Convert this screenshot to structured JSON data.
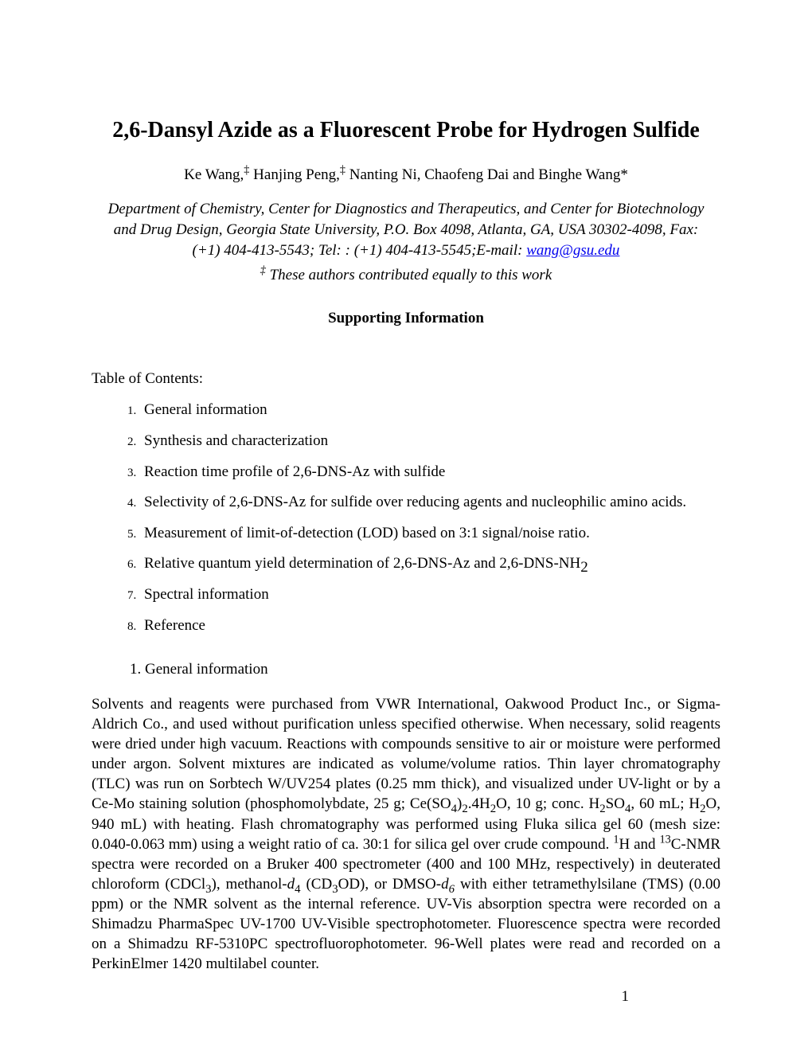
{
  "title": "2,6-Dansyl Azide as a Fluorescent Probe for Hydrogen Sulfide",
  "authors_html": "Ke Wang,<span class=\"sup\">‡</span> Hanjing Peng,<span class=\"sup\">‡</span> Nanting Ni, Chaofeng Dai and Binghe Wang*",
  "affiliation_html": "Department of Chemistry, Center for Diagnostics and Therapeutics, and Center for Biotechnology and Drug Design, Georgia State University, P.O. Box 4098, Atlanta, GA, USA 30302-4098, Fax: (+1) 404-413-5543; Tel: : (+1) 404-413-5545;E-mail: <a class=\"email-link\" href=\"#\" data-name=\"email-link\" data-interactable=\"true\">wang@gsu.edu</a>",
  "equal_contrib_html": "<span class=\"sup\">‡</span>  These authors contributed equally to this work",
  "supporting_info": "Supporting Information",
  "toc_heading": "Table of Contents:",
  "toc_items": [
    "General information",
    "Synthesis and characterization",
    "Reaction time profile of 2,6-DNS-Az with sulfide",
    "Selectivity of 2,6-DNS-Az for sulfide over reducing agents and nucleophilic amino acids.",
    "Measurement of limit-of-detection (LOD) based on 3:1 signal/noise ratio.",
    "Relative quantum yield determination of 2,6-DNS-Az and 2,6-DNS-NH<span class=\"sub\">2</span>",
    "Spectral information",
    "Reference"
  ],
  "section1_heading": "1.   General information",
  "body_html": "Solvents and reagents were purchased from VWR International, Oakwood Product Inc., or Sigma-Aldrich Co., and used without purification unless specified otherwise. When necessary, solid reagents were dried under high vacuum. Reactions with compounds sensitive to air or moisture were performed under argon. Solvent mixtures are indicated as volume/volume ratios. Thin layer chromatography (TLC) was run on Sorbtech W/UV254 plates (0.25 mm thick), and visualized under UV-light or by a Ce-Mo staining solution (phosphomolybdate, 25 g; Ce(SO<span class=\"sub\">4</span>)<span class=\"sub\">2</span>.4H<span class=\"sub\">2</span>O, 10 g; conc. H<span class=\"sub\">2</span>SO<span class=\"sub\">4</span>, 60 mL; H<span class=\"sub\">2</span>O, 940 mL) with heating. Flash chromatography was performed using Fluka silica gel 60 (mesh size: 0.040-0.063 mm) using a weight ratio of ca. 30:1 for silica gel over crude compound. <span class=\"sup\">1</span>H and <span class=\"sup\">13</span>C-NMR spectra were recorded on a Bruker 400 spectrometer (400 and 100 MHz, respectively) in deuterated chloroform (CDCl<span class=\"sub\">3</span>), methanol-<span class=\"italic\">d</span><span class=\"sub\">4</span> (CD<span class=\"sub\">3</span>OD), or DMSO-<span class=\"italic\">d<span class=\"sub\">6</span></span> with either tetramethylsilane (TMS) (0.00 ppm) or the NMR solvent as the internal reference. UV-Vis absorption spectra were recorded on a Shimadzu PharmaSpec UV-1700 UV-Visible spectrophotometer. Fluorescence spectra were recorded on a Shimadzu RF-5310PC spectrofluorophotometer. 96-Well plates were read and recorded on a PerkinElmer 1420 multilabel counter.",
  "page_number": "1",
  "colors": {
    "text": "#000000",
    "background": "#ffffff",
    "link": "#0000ee"
  },
  "typography": {
    "body_font": "Times New Roman",
    "body_size_pt": 12,
    "title_size_pt": 18,
    "title_weight": "bold"
  }
}
